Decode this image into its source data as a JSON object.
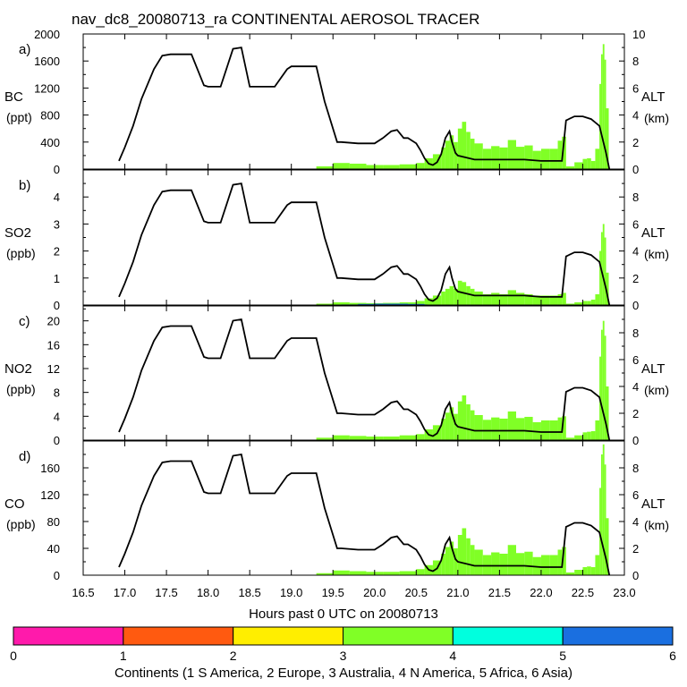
{
  "title": "nav_dc8_20080713_ra CONTINENTAL AEROSOL TRACER",
  "xlabel": "Hours past 0 UTC on 20080713",
  "x_ticks": [
    "16.5",
    "17.0",
    "17.5",
    "18.0",
    "18.5",
    "19.0",
    "19.5",
    "20.0",
    "20.5",
    "21.0",
    "21.5",
    "22.0",
    "22.5",
    "23.0"
  ],
  "colors": {
    "continent_3": "#80ff26",
    "continent_6": "#1a6fe0",
    "altitude_line": "#000000"
  },
  "colorbar": {
    "label": "Continents (1 S America, 2 Europe, 3 Australia, 4 N America, 5 Africa, 6 Asia)",
    "ticks": [
      "0",
      "1",
      "2",
      "3",
      "4",
      "5",
      "6"
    ],
    "segments": [
      {
        "name": "segment-0-1",
        "color": "#ff1aab"
      },
      {
        "name": "segment-1-2",
        "color": "#ff5a10"
      },
      {
        "name": "segment-2-3",
        "color": "#ffee00"
      },
      {
        "name": "segment-3-4",
        "color": "#80ff26"
      },
      {
        "name": "segment-4-5",
        "color": "#00ffde"
      },
      {
        "name": "segment-5-6",
        "color": "#1a6fe0"
      }
    ]
  },
  "panels": [
    {
      "letter": "a)",
      "name": "BC",
      "unit": "(ppt)",
      "right_name": "ALT",
      "right_unit": "(km)",
      "y_ticks": [
        "0",
        "400",
        "800",
        "1200",
        "1600",
        "2000"
      ],
      "alt_ticks": [
        "0",
        "2",
        "4",
        "6",
        "8",
        "10"
      ]
    },
    {
      "letter": "b)",
      "name": "SO2",
      "unit": "(ppb)",
      "right_name": "ALT",
      "right_unit": "(km)",
      "y_ticks": [
        "0",
        "1",
        "2",
        "3",
        "4"
      ],
      "alt_ticks": [
        "0",
        "2",
        "4",
        "6",
        "8"
      ]
    },
    {
      "letter": "c)",
      "name": "NO2",
      "unit": "(ppb)",
      "right_name": "ALT",
      "right_unit": "(km)",
      "y_ticks": [
        "0",
        "4",
        "8",
        "12",
        "16",
        "20"
      ],
      "alt_ticks": [
        "0",
        "2",
        "4",
        "6",
        "8"
      ]
    },
    {
      "letter": "d)",
      "name": "CO",
      "unit": "(ppb)",
      "right_name": "ALT",
      "right_unit": "(km)",
      "y_ticks": [
        "0",
        "40",
        "80",
        "120",
        "160"
      ],
      "alt_ticks": [
        "0",
        "2",
        "4",
        "6",
        "8"
      ]
    }
  ],
  "chart_data": {
    "type": "area",
    "title": "nav_dc8_20080713_ra CONTINENTAL AEROSOL TRACER",
    "xlabel": "Hours past 0 UTC on 20080713",
    "xlim": [
      16.5,
      23.0
    ],
    "altitude_km": {
      "name": "ALT",
      "x": [
        16.93,
        17.0,
        17.1,
        17.2,
        17.35,
        17.45,
        17.55,
        17.8,
        17.95,
        18.0,
        18.15,
        18.3,
        18.4,
        18.5,
        18.8,
        18.95,
        19.0,
        19.1,
        19.3,
        19.4,
        19.55,
        19.6,
        19.8,
        20.0,
        20.1,
        20.2,
        20.27,
        20.35,
        20.4,
        20.5,
        20.55,
        20.6,
        20.65,
        20.7,
        20.75,
        20.8,
        20.85,
        20.9,
        20.93,
        20.97,
        21.0,
        21.2,
        21.4,
        21.5,
        21.8,
        22.0,
        22.2,
        22.25,
        22.3,
        22.4,
        22.5,
        22.6,
        22.7,
        22.78,
        22.82
      ],
      "y": [
        0.6,
        1.6,
        3.2,
        5.2,
        7.4,
        8.4,
        8.5,
        8.5,
        6.2,
        6.1,
        6.1,
        8.9,
        9.0,
        6.1,
        6.1,
        7.4,
        7.6,
        7.6,
        7.6,
        5.0,
        2.0,
        2.0,
        1.9,
        1.9,
        2.3,
        2.8,
        2.9,
        2.3,
        2.3,
        1.9,
        1.4,
        0.8,
        0.4,
        0.3,
        0.5,
        1.1,
        2.3,
        2.8,
        2.0,
        1.2,
        1.0,
        0.7,
        0.7,
        0.7,
        0.7,
        0.6,
        0.6,
        0.6,
        3.6,
        3.9,
        3.9,
        3.7,
        3.2,
        1.2,
        0.0
      ]
    },
    "panels": [
      {
        "variable": "BC",
        "unit": "ppt",
        "ylim": [
          0,
          2000
        ],
        "alt_ylim_km": [
          0,
          10
        ],
        "series": [
          {
            "name": "3 Australia",
            "color": "#80ff26",
            "x": [
              19.3,
              19.5,
              19.7,
              19.9,
              20.1,
              20.3,
              20.5,
              20.6,
              20.7,
              20.8,
              20.85,
              20.9,
              20.95,
              21.0,
              21.05,
              21.1,
              21.15,
              21.2,
              21.3,
              21.4,
              21.5,
              21.6,
              21.7,
              21.8,
              21.9,
              22.0,
              22.1,
              22.2,
              22.25,
              22.3,
              22.4,
              22.5,
              22.55,
              22.6,
              22.65,
              22.7,
              22.72,
              22.74,
              22.76,
              22.78
            ],
            "y": [
              40,
              90,
              80,
              60,
              60,
              70,
              90,
              160,
              220,
              320,
              420,
              500,
              400,
              600,
              700,
              550,
              450,
              380,
              300,
              340,
              320,
              430,
              330,
              350,
              270,
              300,
              300,
              420,
              480,
              40,
              100,
              150,
              160,
              120,
              300,
              1260,
              1700,
              1850,
              1620,
              900
            ]
          }
        ]
      },
      {
        "variable": "SO2",
        "unit": "ppb",
        "ylim": [
          0,
          5
        ],
        "alt_ylim_km": [
          0,
          10
        ],
        "series": [
          {
            "name": "3 Australia",
            "color": "#80ff26",
            "x": [
              19.3,
              19.5,
              19.7,
              19.9,
              20.1,
              20.3,
              20.5,
              20.6,
              20.7,
              20.8,
              20.85,
              20.9,
              20.95,
              21.0,
              21.05,
              21.1,
              21.15,
              21.2,
              21.3,
              21.4,
              21.5,
              21.6,
              21.7,
              21.8,
              21.9,
              22.0,
              22.1,
              22.2,
              22.25,
              22.3,
              22.4,
              22.5,
              22.55,
              22.6,
              22.65,
              22.7,
              22.72,
              22.74,
              22.76,
              22.78
            ],
            "y": [
              0.05,
              0.1,
              0.08,
              0.07,
              0.08,
              0.1,
              0.15,
              0.25,
              0.35,
              0.5,
              0.6,
              0.7,
              0.6,
              0.9,
              0.85,
              0.7,
              0.6,
              0.5,
              0.4,
              0.45,
              0.4,
              0.55,
              0.45,
              0.4,
              0.35,
              0.35,
              0.35,
              0.4,
              0.45,
              0.05,
              0.1,
              0.15,
              0.15,
              0.2,
              0.4,
              2.0,
              2.7,
              3.0,
              2.5,
              1.2
            ]
          },
          {
            "name": "6 Asia",
            "color": "#1a6fe0",
            "x": [
              19.6,
              19.8,
              20.0,
              20.2,
              20.4,
              20.6
            ],
            "y": [
              0.02,
              0.04,
              0.05,
              0.05,
              0.04,
              0.02
            ]
          }
        ]
      },
      {
        "variable": "NO2",
        "unit": "ppb",
        "ylim": [
          0,
          22.5
        ],
        "alt_ylim_km": [
          0,
          10
        ],
        "series": [
          {
            "name": "3 Australia",
            "color": "#80ff26",
            "x": [
              19.3,
              19.5,
              19.7,
              19.9,
              20.1,
              20.3,
              20.5,
              20.6,
              20.7,
              20.8,
              20.85,
              20.9,
              20.95,
              21.0,
              21.05,
              21.1,
              21.15,
              21.2,
              21.3,
              21.4,
              21.5,
              21.6,
              21.7,
              21.8,
              21.9,
              22.0,
              22.1,
              22.2,
              22.25,
              22.3,
              22.4,
              22.5,
              22.55,
              22.6,
              22.65,
              22.7,
              22.72,
              22.74,
              22.76,
              22.78
            ],
            "y": [
              0.4,
              0.8,
              0.7,
              0.6,
              0.6,
              0.8,
              1.0,
              1.8,
              2.5,
              3.6,
              4.6,
              5.5,
              4.4,
              6.5,
              7.5,
              6.0,
              5.0,
              4.2,
              3.4,
              3.8,
              3.6,
              4.8,
              3.7,
              3.9,
              3.0,
              3.3,
              3.3,
              3.8,
              4.0,
              0.4,
              0.8,
              1.3,
              1.4,
              1.5,
              3.3,
              14.0,
              18.5,
              20.0,
              17.5,
              9.0
            ]
          }
        ]
      },
      {
        "variable": "CO",
        "unit": "ppb",
        "ylim": [
          0,
          200
        ],
        "alt_ylim_km": [
          0,
          10
        ],
        "series": [
          {
            "name": "3 Australia",
            "color": "#80ff26",
            "x": [
              19.3,
              19.5,
              19.7,
              19.9,
              20.1,
              20.3,
              20.5,
              20.6,
              20.7,
              20.8,
              20.85,
              20.9,
              20.95,
              21.0,
              21.05,
              21.1,
              21.15,
              21.2,
              21.3,
              21.4,
              21.5,
              21.6,
              21.7,
              21.8,
              21.9,
              22.0,
              22.1,
              22.2,
              22.25,
              22.3,
              22.4,
              22.5,
              22.55,
              22.6,
              22.65,
              22.7,
              22.72,
              22.74,
              22.76,
              22.78
            ],
            "y": [
              3,
              7,
              6,
              5,
              5,
              6,
              9,
              15,
              22,
              32,
              42,
              50,
              40,
              60,
              70,
              55,
              45,
              38,
              30,
              34,
              32,
              45,
              33,
              35,
              27,
              30,
              30,
              38,
              42,
              4,
              8,
              12,
              13,
              12,
              30,
              130,
              180,
              195,
              165,
              85
            ]
          }
        ]
      }
    ]
  }
}
